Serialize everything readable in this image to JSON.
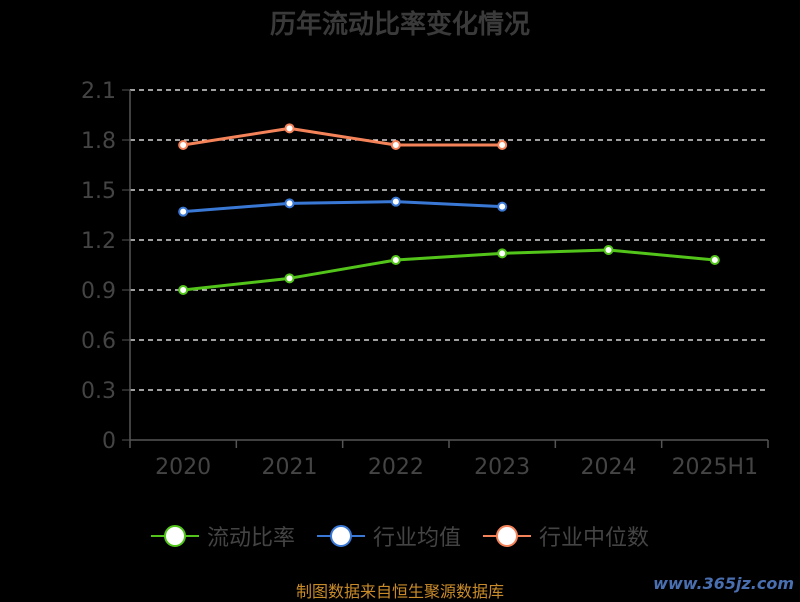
{
  "title": "历年流动比率变化情况",
  "source": "制图数据来自恒生聚源数据库",
  "watermark": "www.365jz.com",
  "chart_data": {
    "type": "line",
    "categories": [
      "2020",
      "2021",
      "2022",
      "2023",
      "2024",
      "2025H1"
    ],
    "ylim": [
      0,
      2.1
    ],
    "yticks": [
      "0",
      "0.3",
      "0.6",
      "0.9",
      "1.2",
      "1.5",
      "1.8",
      "2.1"
    ],
    "grid": true,
    "legend_position": "bottom",
    "series": [
      {
        "name": "流动比率",
        "color": "#52c41a",
        "values": [
          0.9,
          0.97,
          1.08,
          1.12,
          1.14,
          1.08
        ]
      },
      {
        "name": "行业均值",
        "color": "#3a78d6",
        "values": [
          1.37,
          1.42,
          1.43,
          1.4,
          null,
          null
        ]
      },
      {
        "name": "行业中位数",
        "color": "#f5835a",
        "values": [
          1.77,
          1.87,
          1.77,
          1.77,
          null,
          null
        ]
      }
    ]
  }
}
